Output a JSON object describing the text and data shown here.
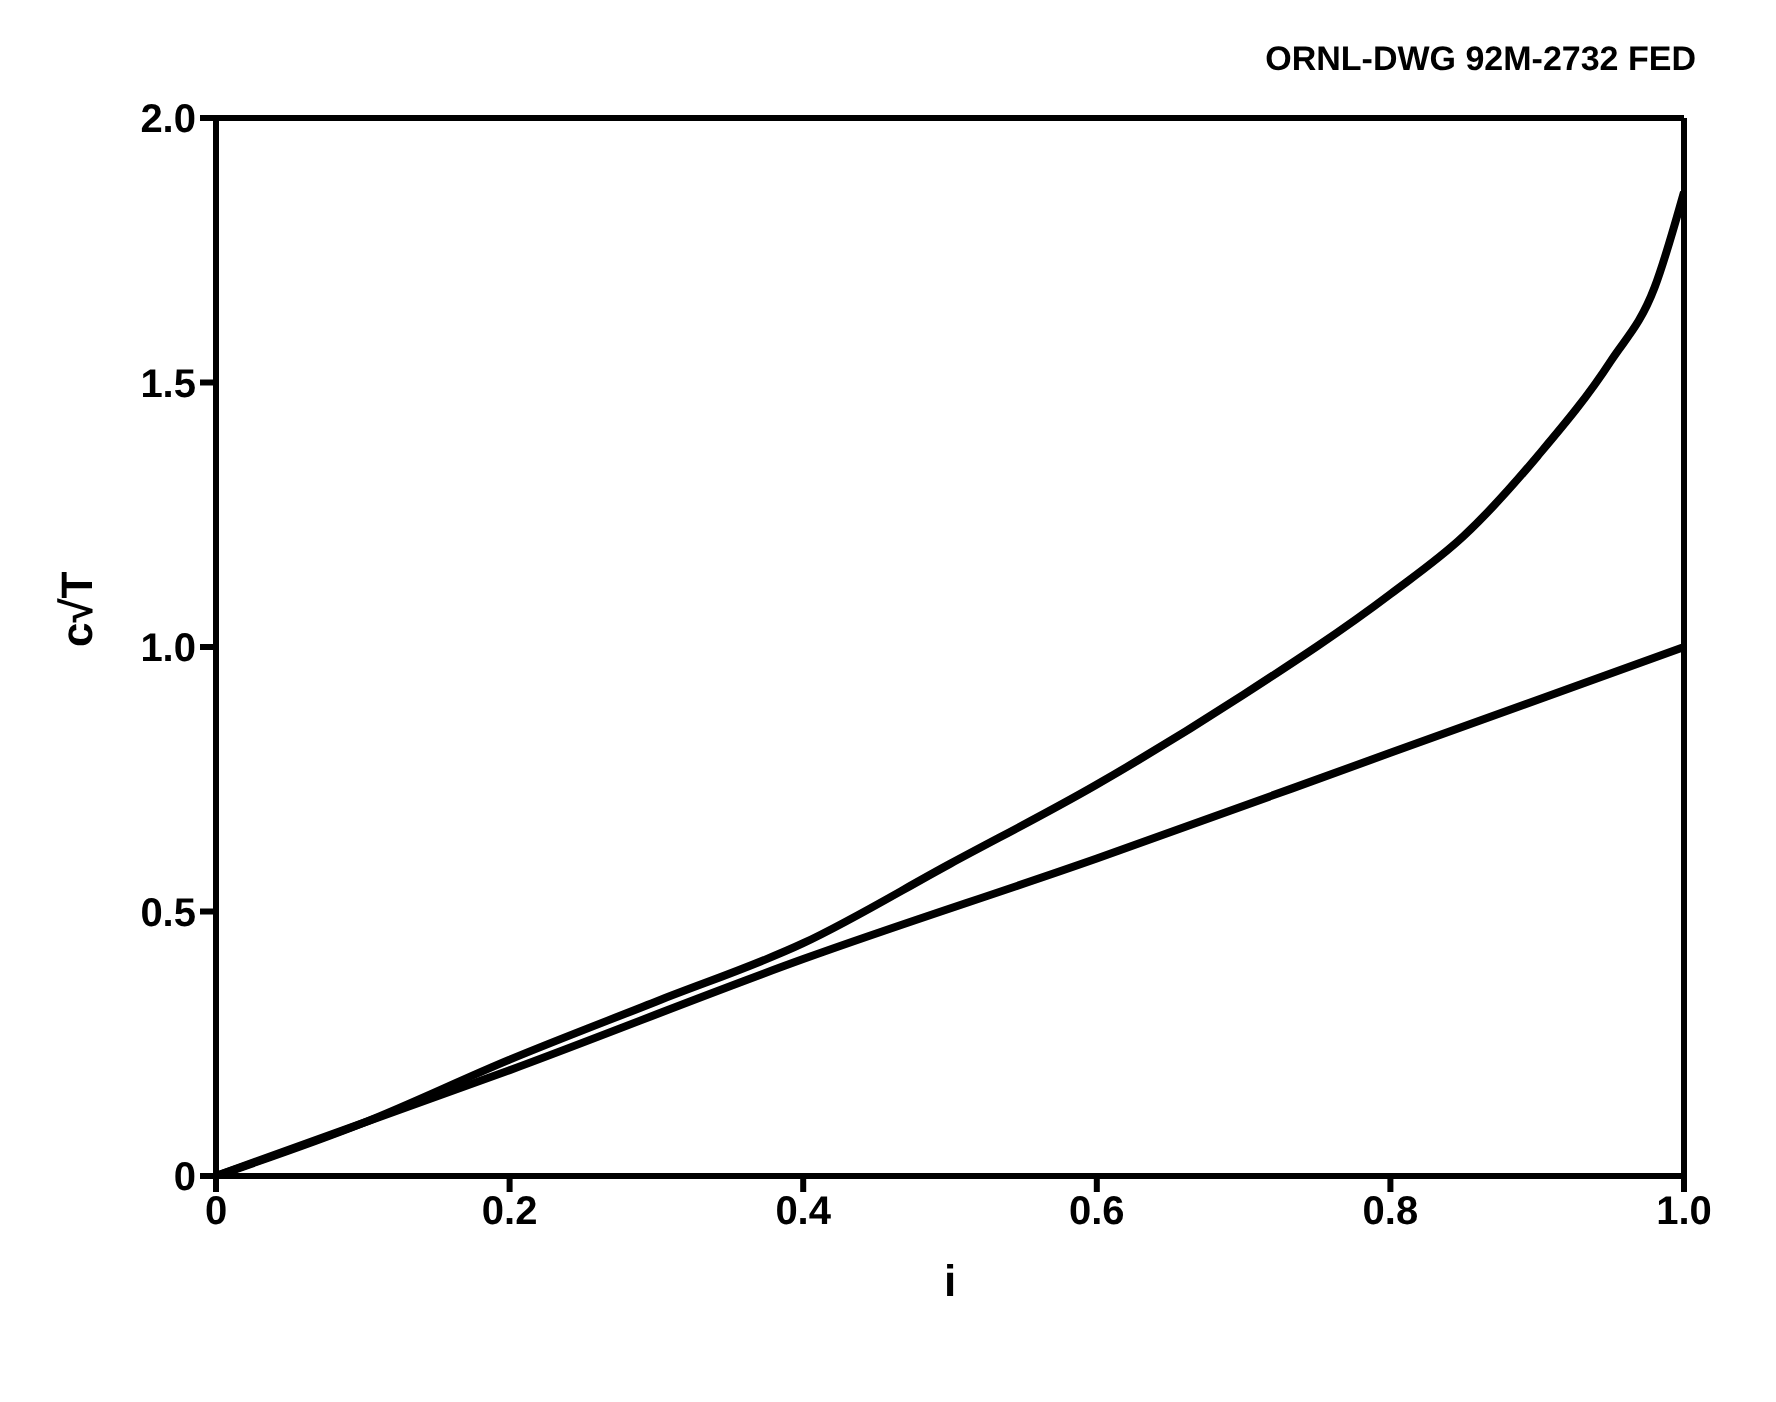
{
  "chart_data": {
    "type": "line",
    "xlabel": "i",
    "ylabel": "c√T",
    "annotations": [
      "ORNL-DWG 92M-2732 FED"
    ],
    "xlim": [
      0,
      1.0
    ],
    "xticks": [
      0,
      0.2,
      0.4,
      0.6,
      0.8,
      {
        "value": 1.0,
        "label": "1.0"
      }
    ],
    "ylim": [
      0,
      2.0
    ],
    "yticks": [
      0,
      {
        "value": 0.5,
        "label": "0.5"
      },
      {
        "value": 1.0,
        "label": "1.0"
      },
      {
        "value": 1.5,
        "label": "1.5"
      },
      {
        "value": 2.0,
        "label": "2.0"
      }
    ],
    "legend": false,
    "marker": "none",
    "line_style": "solid",
    "series": [
      {
        "color": "#000000",
        "x": [
          0,
          0.1,
          0.2,
          0.3,
          0.4,
          0.5,
          0.6,
          0.7,
          0.8,
          0.85,
          0.9,
          0.95,
          0.98,
          1.0
        ],
        "values": [
          0,
          0.1,
          0.22,
          0.33,
          0.44,
          0.59,
          0.74,
          0.91,
          1.1,
          1.21,
          1.36,
          1.54,
          1.68,
          1.86
        ]
      },
      {
        "color": "#000000",
        "x": [
          0,
          0.2,
          0.4,
          0.6,
          0.8,
          1.0
        ],
        "values": [
          0,
          0.2,
          0.41,
          0.6,
          0.8,
          1.0
        ]
      }
    ]
  }
}
